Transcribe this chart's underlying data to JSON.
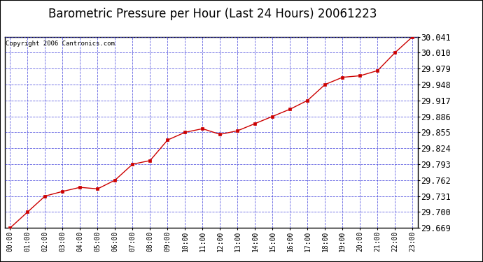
{
  "title": "Barometric Pressure per Hour (Last 24 Hours) 20061223",
  "copyright": "Copyright 2006 Cantronics.com",
  "x_labels": [
    "00:00",
    "01:00",
    "02:00",
    "03:00",
    "04:00",
    "05:00",
    "06:00",
    "07:00",
    "08:00",
    "09:00",
    "10:00",
    "11:00",
    "12:00",
    "13:00",
    "14:00",
    "15:00",
    "16:00",
    "17:00",
    "18:00",
    "19:00",
    "20:00",
    "21:00",
    "22:00",
    "23:00"
  ],
  "y_values": [
    29.669,
    29.7,
    29.731,
    29.74,
    29.748,
    29.745,
    29.762,
    29.793,
    29.8,
    29.84,
    29.855,
    29.862,
    29.851,
    29.858,
    29.872,
    29.886,
    29.9,
    29.917,
    29.948,
    29.962,
    29.965,
    29.975,
    30.01,
    30.041
  ],
  "y_ticks": [
    29.669,
    29.7,
    29.731,
    29.762,
    29.793,
    29.824,
    29.855,
    29.886,
    29.917,
    29.948,
    29.979,
    30.01,
    30.041
  ],
  "y_min": 29.669,
  "y_max": 30.041,
  "line_color": "#cc0000",
  "marker_color": "#cc0000",
  "plot_bg_color": "#ffffff",
  "grid_color": "#4444dd",
  "title_fontsize": 12,
  "copyright_fontsize": 6.5,
  "tick_fontsize": 8.5,
  "xtick_fontsize": 7
}
